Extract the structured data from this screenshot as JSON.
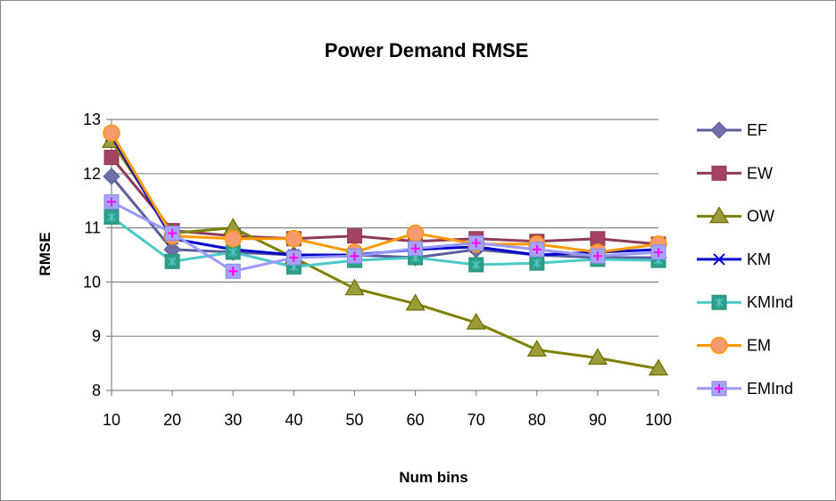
{
  "chart_data": {
    "type": "line",
    "title": "Power Demand RMSE",
    "xlabel": "Num bins",
    "ylabel": "RMSE",
    "ylim": [
      8,
      13
    ],
    "yticks": [
      8,
      9,
      10,
      11,
      12,
      13
    ],
    "grid": true,
    "legend_position": "right",
    "x": [
      10,
      20,
      30,
      40,
      50,
      60,
      70,
      80,
      90,
      100
    ],
    "series": [
      {
        "name": "EF",
        "marker": "diamond",
        "color": "#5B5E9C",
        "fill": "#6E6FA8",
        "values": [
          11.95,
          10.6,
          10.55,
          10.5,
          10.5,
          10.45,
          10.6,
          10.5,
          10.45,
          10.45
        ]
      },
      {
        "name": "EW",
        "marker": "square",
        "color": "#8E3A59",
        "fill": "#A3435F",
        "values": [
          12.3,
          10.95,
          10.85,
          10.8,
          10.85,
          10.75,
          10.8,
          10.75,
          10.8,
          10.7
        ]
      },
      {
        "name": "OW",
        "marker": "triangle",
        "color": "#7F7F00",
        "fill": "#9B9B3C",
        "values": [
          12.6,
          10.9,
          11.0,
          10.45,
          9.88,
          9.6,
          9.25,
          8.75,
          8.6,
          8.4
        ]
      },
      {
        "name": "KM",
        "marker": "x",
        "color": "#0000CC",
        "fill": "#0000CC",
        "values": [
          12.7,
          10.8,
          10.6,
          10.5,
          10.5,
          10.6,
          10.65,
          10.5,
          10.55,
          10.6
        ]
      },
      {
        "name": "KMInd",
        "marker": "star-square",
        "color": "#4CC8C8",
        "fill": "#2E9E88",
        "values": [
          11.2,
          10.38,
          10.55,
          10.28,
          10.4,
          10.45,
          10.32,
          10.35,
          10.42,
          10.4
        ]
      },
      {
        "name": "EM",
        "marker": "circle",
        "color": "#FF9900",
        "fill": "#F79A6E",
        "values": [
          12.75,
          10.85,
          10.8,
          10.8,
          10.55,
          10.9,
          10.7,
          10.7,
          10.55,
          10.7
        ]
      },
      {
        "name": "EMInd",
        "marker": "plus-square",
        "color": "#9999FF",
        "fill": "#A5A5F5",
        "values": [
          11.48,
          10.9,
          10.2,
          10.45,
          10.48,
          10.62,
          10.72,
          10.6,
          10.48,
          10.55
        ]
      }
    ]
  }
}
